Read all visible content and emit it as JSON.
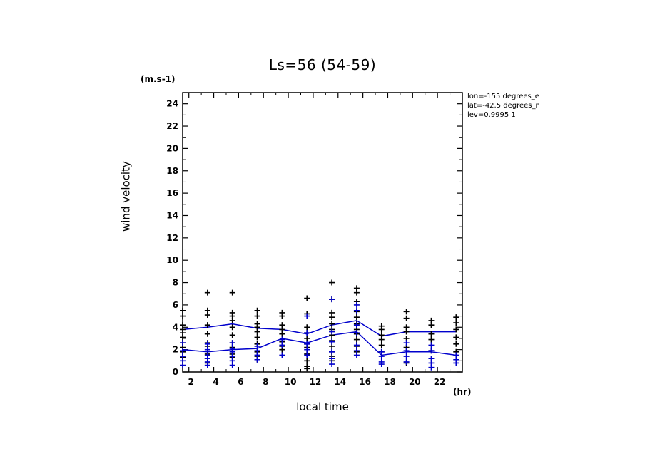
{
  "chart_data": {
    "type": "scatter",
    "title": "Ls=56 (54-59)",
    "xlabel": "local time",
    "ylabel": "wind velocity",
    "y_unit": "(m.s-1)",
    "x_unit": "(hr)",
    "xlim": [
      1.5,
      24
    ],
    "ylim": [
      0,
      25
    ],
    "x_ticks": [
      2,
      4,
      6,
      8,
      10,
      12,
      14,
      16,
      18,
      20,
      22
    ],
    "y_ticks": [
      0,
      2,
      4,
      6,
      8,
      10,
      12,
      14,
      16,
      18,
      20,
      22,
      24
    ],
    "annotations": [
      "lon=-155 degrees_e",
      "lat=-42.5 degrees_n",
      "lev=0.9995 1"
    ],
    "colors": {
      "black": "#000000",
      "blue": "#0000cc"
    },
    "series": [
      {
        "marker": "plus",
        "color": "#000000",
        "points": [
          [
            1.5,
            5.5
          ],
          [
            1.5,
            5.0
          ],
          [
            1.5,
            4.2
          ],
          [
            1.5,
            3.8
          ],
          [
            1.5,
            3.5
          ],
          [
            1.5,
            3.1
          ],
          [
            1.5,
            2.6
          ],
          [
            1.5,
            2.2
          ],
          [
            1.5,
            1.8
          ],
          [
            1.5,
            1.3
          ],
          [
            3.5,
            7.1
          ],
          [
            3.5,
            5.5
          ],
          [
            3.5,
            5.1
          ],
          [
            3.5,
            4.2
          ],
          [
            3.5,
            3.4
          ],
          [
            3.5,
            2.6
          ],
          [
            3.5,
            2.3
          ],
          [
            3.5,
            1.6
          ],
          [
            3.5,
            1.2
          ],
          [
            3.5,
            0.8
          ],
          [
            5.5,
            7.1
          ],
          [
            5.5,
            5.3
          ],
          [
            5.5,
            5.0
          ],
          [
            5.5,
            4.6
          ],
          [
            5.5,
            4.0
          ],
          [
            5.5,
            3.3
          ],
          [
            5.5,
            2.6
          ],
          [
            5.5,
            2.2
          ],
          [
            5.5,
            1.6
          ],
          [
            5.5,
            1.3
          ],
          [
            7.5,
            5.5
          ],
          [
            7.5,
            5.0
          ],
          [
            7.5,
            4.3
          ],
          [
            7.5,
            4.0
          ],
          [
            7.5,
            3.6
          ],
          [
            7.5,
            3.1
          ],
          [
            7.5,
            2.5
          ],
          [
            7.5,
            1.8
          ],
          [
            7.5,
            1.4
          ],
          [
            7.5,
            1.1
          ],
          [
            9.5,
            5.3
          ],
          [
            9.5,
            5.0
          ],
          [
            9.5,
            4.2
          ],
          [
            9.5,
            3.8
          ],
          [
            9.5,
            3.4
          ],
          [
            9.5,
            2.7
          ],
          [
            9.5,
            2.3
          ],
          [
            9.5,
            2.0
          ],
          [
            11.5,
            6.6
          ],
          [
            11.5,
            5.2
          ],
          [
            11.5,
            4.0
          ],
          [
            11.5,
            3.5
          ],
          [
            11.5,
            3.0
          ],
          [
            11.5,
            2.5
          ],
          [
            11.5,
            2.2
          ],
          [
            11.5,
            1.6
          ],
          [
            11.5,
            1.0
          ],
          [
            11.5,
            0.5
          ],
          [
            11.5,
            0.3
          ],
          [
            13.5,
            8.0
          ],
          [
            13.5,
            6.5
          ],
          [
            13.5,
            5.3
          ],
          [
            13.5,
            4.9
          ],
          [
            13.5,
            4.3
          ],
          [
            13.5,
            3.8
          ],
          [
            13.5,
            3.3
          ],
          [
            13.5,
            2.8
          ],
          [
            13.5,
            2.3
          ],
          [
            13.5,
            1.8
          ],
          [
            13.5,
            1.4
          ],
          [
            13.5,
            1.0
          ],
          [
            15.5,
            7.5
          ],
          [
            15.5,
            7.1
          ],
          [
            15.5,
            6.3
          ],
          [
            15.5,
            5.4
          ],
          [
            15.5,
            4.9
          ],
          [
            15.5,
            4.3
          ],
          [
            15.5,
            3.8
          ],
          [
            15.5,
            3.4
          ],
          [
            15.5,
            2.9
          ],
          [
            15.5,
            2.3
          ],
          [
            15.5,
            1.8
          ],
          [
            17.5,
            4.1
          ],
          [
            17.5,
            3.8
          ],
          [
            17.5,
            3.3
          ],
          [
            17.5,
            2.9
          ],
          [
            17.5,
            2.4
          ],
          [
            17.5,
            1.8
          ],
          [
            19.5,
            5.4
          ],
          [
            19.5,
            4.8
          ],
          [
            19.5,
            4.0
          ],
          [
            19.5,
            3.6
          ],
          [
            19.5,
            3.0
          ],
          [
            19.5,
            2.2
          ],
          [
            19.5,
            0.8
          ],
          [
            21.5,
            4.6
          ],
          [
            21.5,
            4.2
          ],
          [
            21.5,
            3.4
          ],
          [
            21.5,
            2.9
          ],
          [
            21.5,
            1.9
          ],
          [
            23.5,
            4.9
          ],
          [
            23.5,
            4.4
          ],
          [
            23.5,
            3.8
          ],
          [
            23.5,
            3.1
          ],
          [
            23.5,
            2.5
          ],
          [
            23.5,
            1.8
          ]
        ]
      },
      {
        "marker": "plus",
        "color": "#0000cc",
        "points": [
          [
            1.5,
            2.6
          ],
          [
            1.5,
            1.9
          ],
          [
            1.5,
            1.4
          ],
          [
            1.5,
            1.0
          ],
          [
            1.5,
            0.6
          ],
          [
            3.5,
            2.5
          ],
          [
            3.5,
            2.0
          ],
          [
            3.5,
            1.5
          ],
          [
            3.5,
            1.2
          ],
          [
            3.5,
            0.9
          ],
          [
            3.5,
            0.6
          ],
          [
            5.5,
            2.6
          ],
          [
            5.5,
            2.1
          ],
          [
            5.5,
            1.8
          ],
          [
            5.5,
            1.4
          ],
          [
            5.5,
            1.0
          ],
          [
            5.5,
            0.6
          ],
          [
            7.5,
            2.3
          ],
          [
            7.5,
            1.9
          ],
          [
            7.5,
            1.5
          ],
          [
            7.5,
            1.1
          ],
          [
            9.5,
            2.9
          ],
          [
            9.5,
            2.4
          ],
          [
            9.5,
            1.5
          ],
          [
            11.5,
            5.0
          ],
          [
            11.5,
            3.5
          ],
          [
            11.5,
            2.5
          ],
          [
            11.5,
            2.0
          ],
          [
            11.5,
            1.5
          ],
          [
            13.5,
            6.5
          ],
          [
            13.5,
            3.6
          ],
          [
            13.5,
            2.7
          ],
          [
            13.5,
            1.8
          ],
          [
            13.5,
            1.2
          ],
          [
            13.5,
            0.7
          ],
          [
            15.5,
            6.0
          ],
          [
            15.5,
            5.5
          ],
          [
            15.5,
            4.2
          ],
          [
            15.5,
            3.5
          ],
          [
            15.5,
            2.4
          ],
          [
            15.5,
            1.9
          ],
          [
            15.5,
            1.5
          ],
          [
            17.5,
            1.8
          ],
          [
            17.5,
            1.4
          ],
          [
            17.5,
            0.9
          ],
          [
            17.5,
            0.7
          ],
          [
            19.5,
            2.6
          ],
          [
            19.5,
            1.9
          ],
          [
            19.5,
            1.4
          ],
          [
            19.5,
            0.9
          ],
          [
            21.5,
            2.4
          ],
          [
            21.5,
            1.9
          ],
          [
            21.5,
            1.2
          ],
          [
            21.5,
            0.8
          ],
          [
            21.5,
            0.4
          ],
          [
            23.5,
            1.5
          ],
          [
            23.5,
            1.1
          ],
          [
            23.5,
            0.8
          ]
        ]
      }
    ],
    "lines": [
      {
        "color": "#0000cc",
        "points": [
          [
            1.5,
            3.8
          ],
          [
            3.5,
            4.0
          ],
          [
            5.5,
            4.3
          ],
          [
            7.5,
            3.9
          ],
          [
            9.5,
            3.8
          ],
          [
            11.5,
            3.4
          ],
          [
            13.5,
            4.2
          ],
          [
            15.5,
            4.6
          ],
          [
            17.5,
            3.2
          ],
          [
            19.5,
            3.6
          ],
          [
            21.5,
            3.6
          ],
          [
            23.5,
            3.6
          ]
        ]
      },
      {
        "color": "#0000cc",
        "points": [
          [
            1.5,
            2.0
          ],
          [
            3.5,
            1.8
          ],
          [
            5.5,
            2.0
          ],
          [
            7.5,
            2.1
          ],
          [
            9.5,
            3.0
          ],
          [
            11.5,
            2.6
          ],
          [
            13.5,
            3.3
          ],
          [
            15.5,
            3.6
          ],
          [
            17.5,
            1.5
          ],
          [
            19.5,
            1.8
          ],
          [
            21.5,
            1.8
          ],
          [
            23.5,
            1.5
          ]
        ]
      }
    ]
  }
}
